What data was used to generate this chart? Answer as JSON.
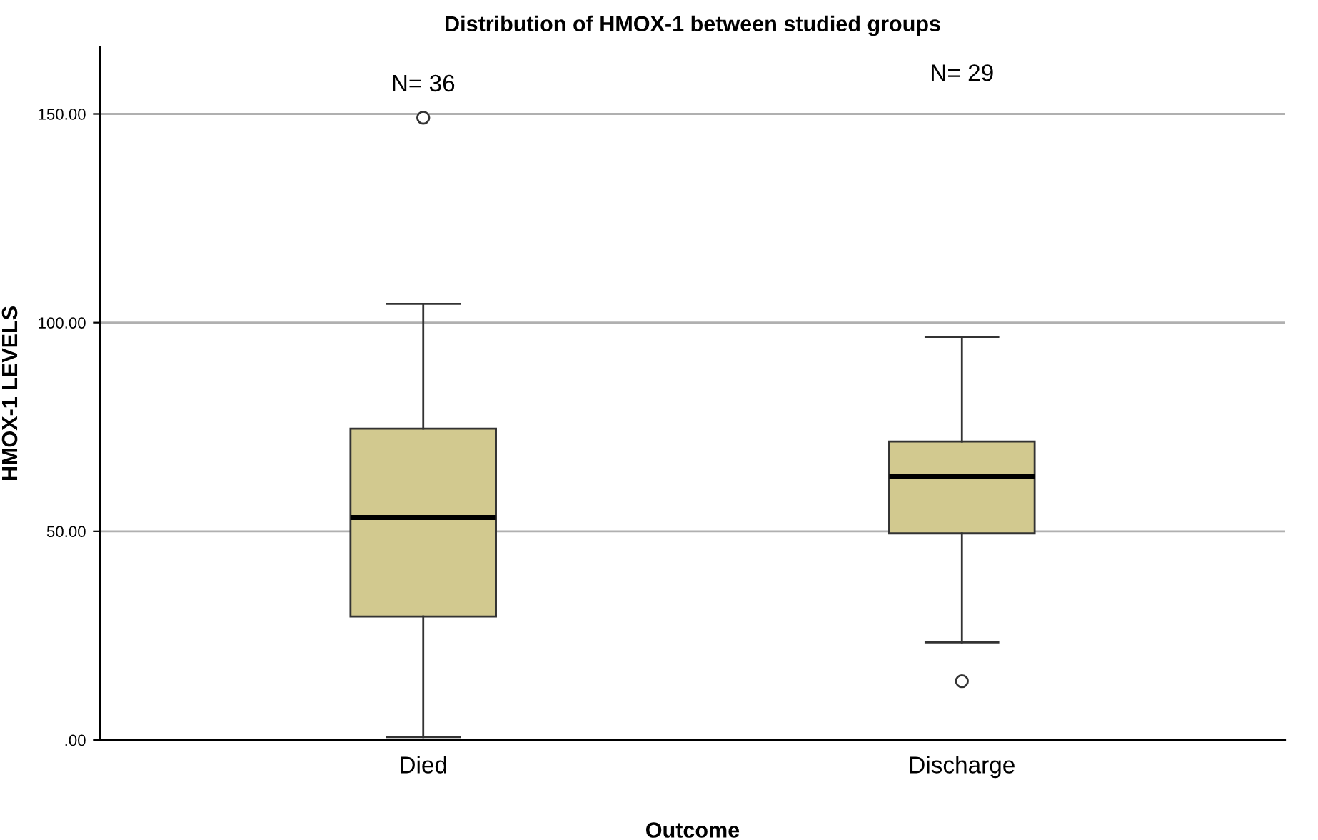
{
  "chart_data": {
    "type": "box",
    "title": "Distribution of HMOX-1 between studied groups",
    "xlabel": "Outcome",
    "ylabel": "HMOX-1 LEVELS",
    "categories": [
      "Died",
      "Discharge"
    ],
    "boxes": [
      {
        "low": 0.7,
        "q1": 29.6,
        "median": 53.3,
        "q3": 74.6,
        "high": 104.5,
        "outliers": [
          149.1
        ]
      },
      {
        "low": 23.4,
        "q1": 49.5,
        "median": 63.2,
        "q3": 71.5,
        "high": 96.6,
        "outliers": [
          14.1
        ]
      }
    ],
    "color": "#d2c98f",
    "ylim": [
      0,
      166
    ],
    "yticks": [
      {
        "value": 0,
        "label": ".00"
      },
      {
        "value": 50,
        "label": "50.00"
      },
      {
        "value": 100,
        "label": "100.00"
      },
      {
        "value": 150,
        "label": "150.00"
      }
    ],
    "grid": "y",
    "annotations": [
      "N= 36",
      "N= 29"
    ]
  }
}
